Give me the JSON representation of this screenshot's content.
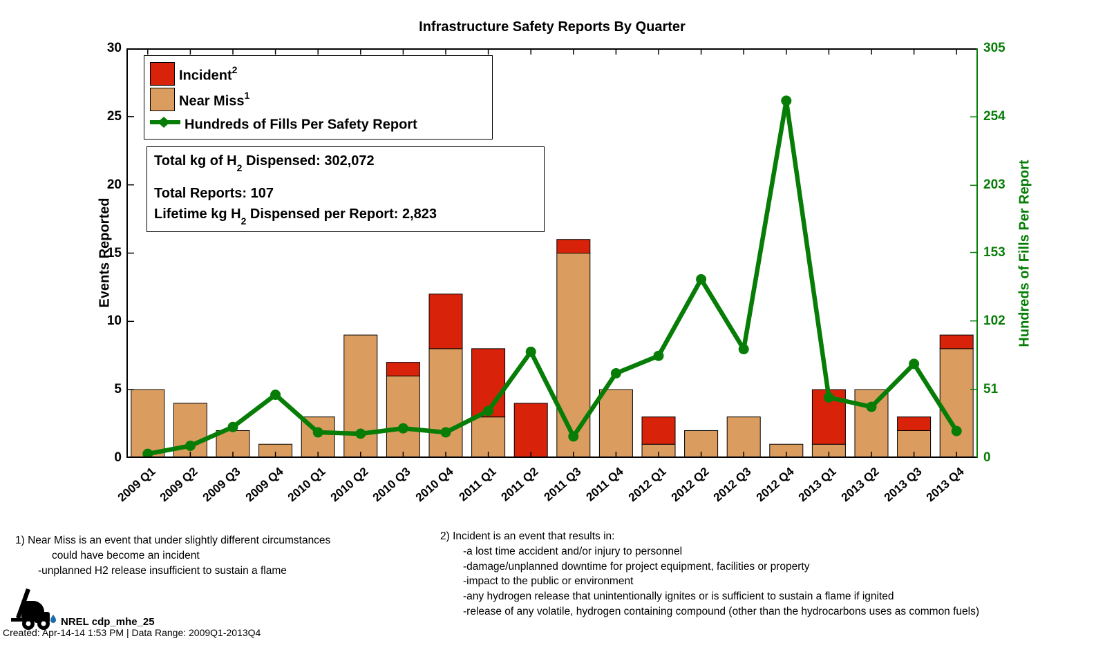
{
  "title": "Infrastructure Safety Reports By Quarter",
  "chart_data": {
    "type": "bar",
    "subtype": "stacked-bars-with-line-overlay",
    "categories": [
      "2009 Q1",
      "2009 Q2",
      "2009 Q3",
      "2009 Q4",
      "2010 Q1",
      "2010 Q2",
      "2010 Q3",
      "2010 Q4",
      "2011 Q1",
      "2011 Q2",
      "2011 Q3",
      "2011 Q4",
      "2012 Q1",
      "2012 Q2",
      "2012 Q3",
      "2012 Q4",
      "2013 Q1",
      "2013 Q2",
      "2013 Q3",
      "2013 Q4"
    ],
    "series": [
      {
        "name": "Near Miss",
        "type": "bar",
        "stack": true,
        "axis": "left",
        "color": "#DB9D5F",
        "values": [
          5,
          4,
          2,
          1,
          3,
          9,
          6,
          8,
          3,
          0,
          15,
          5,
          1,
          2,
          3,
          1,
          1,
          5,
          2,
          8
        ]
      },
      {
        "name": "Incident",
        "type": "bar",
        "stack": true,
        "axis": "left",
        "color": "#D8230A",
        "values": [
          0,
          0,
          0,
          0,
          0,
          0,
          1,
          4,
          5,
          4,
          1,
          0,
          2,
          0,
          0,
          0,
          4,
          0,
          1,
          1
        ]
      },
      {
        "name": "Hundreds of Fills Per Safety Report",
        "type": "line",
        "axis": "right",
        "color": "#077D07",
        "values": [
          3,
          9,
          23,
          47,
          19,
          18,
          22,
          19,
          35,
          79,
          16,
          63,
          76,
          133,
          81,
          266,
          45,
          38,
          70,
          20
        ]
      }
    ],
    "left_axis": {
      "label": "Events Reported",
      "ticks": [
        0,
        5,
        10,
        15,
        20,
        25,
        30
      ]
    },
    "right_axis": {
      "label": "Hundreds of Fills Per Report",
      "ticks": [
        0,
        51,
        102,
        153,
        203,
        254,
        305
      ]
    },
    "left_ylim": [
      0,
      30
    ],
    "right_ylim": [
      0,
      305
    ],
    "grid": false,
    "legend_position": "top-left-inside"
  },
  "legend": {
    "items": [
      {
        "label": "Incident",
        "sup": "2"
      },
      {
        "label": "Near Miss",
        "sup": "1"
      },
      {
        "label": "Hundreds of Fills Per Safety Report",
        "sup": ""
      }
    ]
  },
  "info_box": {
    "lines": [
      {
        "pre": "Total kg of H",
        "sub": "2",
        "post": " Dispensed: 302,072"
      },
      {
        "pre": "Total Reports: 107",
        "sub": "",
        "post": ""
      },
      {
        "pre": "Lifetime kg H",
        "sub": "2",
        "post": " Dispensed per Report: 2,823"
      }
    ]
  },
  "footnotes": {
    "left": [
      {
        "text": "1) Near Miss is an event that under slightly different circumstances",
        "indent": 0
      },
      {
        "text": "could have become an incident",
        "indent": 2
      },
      {
        "text": "-unplanned H2 release insufficient to sustain a flame",
        "indent": 1
      }
    ],
    "right": [
      {
        "text": "2) Incident is an event that results in:",
        "indent": 0
      },
      {
        "text": "-a lost time accident and/or injury to personnel",
        "indent": 1
      },
      {
        "text": "-damage/unplanned downtime for project equipment, facilities or property",
        "indent": 1
      },
      {
        "text": "-impact to the public or environment",
        "indent": 1
      },
      {
        "text": "-any hydrogen release that unintentionally ignites or is sufficient to sustain a flame if ignited",
        "indent": 1
      },
      {
        "text": "-release of any volatile, hydrogen containing compound (other than the hydrocarbons uses as common fuels)",
        "indent": 1
      }
    ]
  },
  "branding": {
    "logo": "forklift-icon",
    "logo_droplet_color": "#1B6CA8",
    "label": "NREL cdp_mhe_25",
    "created": "Created: Apr-14-14  1:53 PM | Data Range: 2009Q1-2013Q4"
  }
}
